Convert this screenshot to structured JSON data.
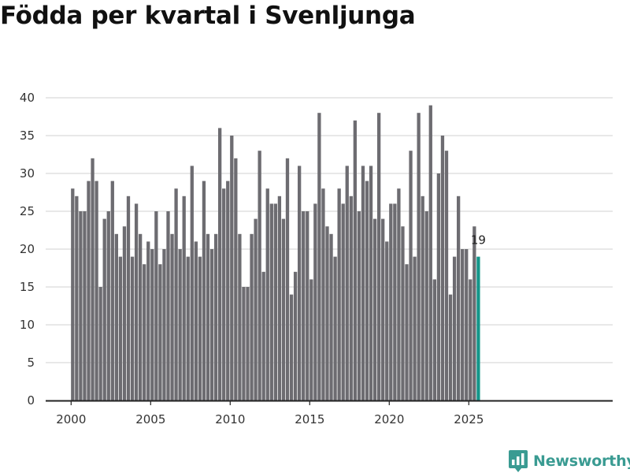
{
  "header": {
    "title": "Födda per kvartal i Svenljunga"
  },
  "brand": {
    "name": "Newsworthy",
    "icon": "bar-chart-logo-icon",
    "color": "#3a9b92"
  },
  "colors": {
    "bar": "#6d6c71",
    "highlight": "#13968a",
    "grid": "#d9d9d9",
    "axis": "#222222"
  },
  "chart_data": {
    "type": "bar",
    "title": "Födda per kvartal i Svenljunga",
    "xlabel": "",
    "ylabel": "",
    "ylim": [
      0,
      40
    ],
    "yticks": [
      0,
      5,
      10,
      15,
      20,
      25,
      30,
      35,
      40
    ],
    "xticks": [
      "2000",
      "2005",
      "2010",
      "2015",
      "2020",
      "2025"
    ],
    "grid": true,
    "start_year": 2000,
    "periods_per_year": 4,
    "highlight_last": true,
    "last_label": "19",
    "values": [
      28,
      27,
      25,
      25,
      29,
      32,
      29,
      15,
      24,
      25,
      29,
      22,
      19,
      23,
      27,
      19,
      26,
      22,
      18,
      21,
      20,
      25,
      18,
      20,
      25,
      22,
      28,
      20,
      27,
      19,
      31,
      21,
      19,
      29,
      22,
      20,
      22,
      36,
      28,
      29,
      35,
      32,
      22,
      15,
      15,
      22,
      24,
      33,
      17,
      28,
      26,
      26,
      27,
      24,
      32,
      14,
      17,
      31,
      25,
      25,
      16,
      26,
      38,
      28,
      23,
      22,
      19,
      28,
      26,
      31,
      27,
      37,
      25,
      31,
      29,
      31,
      24,
      38,
      24,
      21,
      26,
      26,
      28,
      23,
      18,
      33,
      19,
      38,
      27,
      25,
      39,
      16,
      30,
      35,
      33,
      14,
      19,
      27,
      20,
      20,
      16,
      23,
      19
    ]
  }
}
